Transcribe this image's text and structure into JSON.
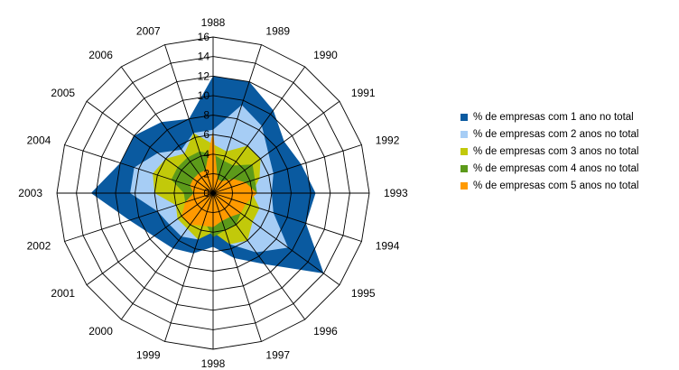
{
  "chart_data": {
    "type": "radar",
    "categories": [
      "1988",
      "1989",
      "1990",
      "1991",
      "1992",
      "1993",
      "1994",
      "1995",
      "1996",
      "1997",
      "1998",
      "1999",
      "2000",
      "2001",
      "2002",
      "2003",
      "2004",
      "2005",
      "2006",
      "2007"
    ],
    "radial_ticks": [
      "0",
      "2",
      "4",
      "6",
      "8",
      "10",
      "12",
      "14",
      "16"
    ],
    "rmax": 16,
    "series": [
      {
        "name": "% de empresas com 1 ano no total",
        "color": "#0a5aa0",
        "values": [
          12,
          12,
          10.5,
          9,
          9.5,
          10.5,
          10,
          14,
          9,
          7,
          5.5,
          6.5,
          7,
          7.5,
          9,
          12.5,
          10,
          10,
          9,
          8
        ]
      },
      {
        "name": "% de empresas com 2 anos no total",
        "color": "#a6cdf5",
        "values": [
          6.5,
          9.5,
          8.5,
          7,
          6.5,
          6,
          6.5,
          9.5,
          7.5,
          5.5,
          3.5,
          5,
          5.5,
          5.5,
          6,
          8.5,
          8.5,
          7,
          5.5,
          6.5
        ]
      },
      {
        "name": "% de empresas com 3 anos no total",
        "color": "#c2c90a",
        "values": [
          5,
          4.5,
          6,
          6,
          5,
          4,
          5,
          5,
          6,
          5.5,
          4,
          5,
          4.5,
          4.5,
          4,
          6,
          6.5,
          6,
          5,
          6.5
        ]
      },
      {
        "name": "% de empresas com 4 anos no total",
        "color": "#5c9a1a",
        "values": [
          4,
          3.5,
          3.5,
          5,
          4.5,
          4.5,
          3.5,
          3.5,
          4,
          4,
          4.5,
          3,
          3,
          3.5,
          3,
          3,
          4.5,
          4.5,
          4.5,
          4.5
        ]
      },
      {
        "name": "% de empresas com 5 anos no total",
        "color": "#ff9a00",
        "values": [
          6.5,
          1.5,
          1.5,
          2.5,
          3.5,
          4.5,
          3.5,
          3.5,
          3,
          3,
          3.5,
          3.5,
          4,
          4,
          3,
          2,
          2.5,
          2.5,
          2.5,
          2.5
        ]
      }
    ],
    "grid": true,
    "legend": "right"
  }
}
